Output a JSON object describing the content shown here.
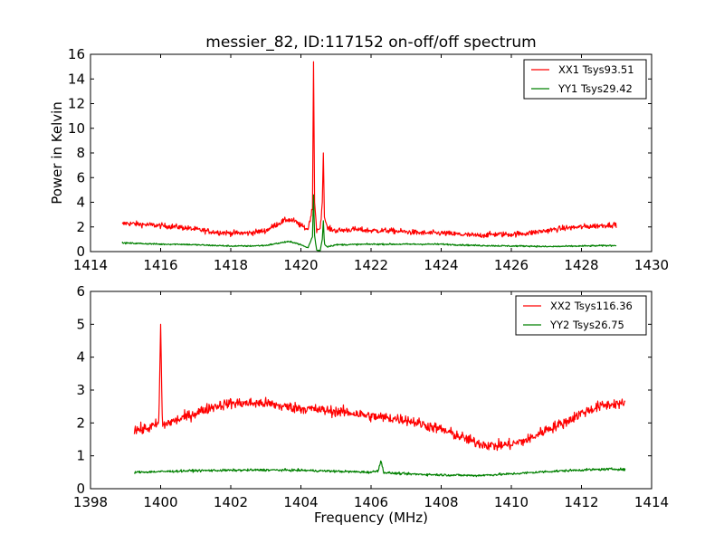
{
  "figure": {
    "background": "#ffffff"
  },
  "chart_data": [
    {
      "type": "line",
      "title": "messier_82, ID:117152 on-off/off spectrum",
      "xlabel": "",
      "ylabel": "Power in Kelvin",
      "xlim": [
        1414,
        1430
      ],
      "ylim": [
        0,
        16
      ],
      "xticks": [
        1414,
        1416,
        1418,
        1420,
        1422,
        1424,
        1426,
        1428,
        1430
      ],
      "yticks": [
        0,
        2,
        4,
        6,
        8,
        10,
        12,
        14,
        16
      ],
      "legend_position": "top-right",
      "grid": false,
      "series": [
        {
          "name": "XX1 Tsys93.51",
          "color": "#ff0000",
          "x": [
            1414.9,
            1415.0,
            1415.5,
            1416.0,
            1416.5,
            1417.0,
            1417.5,
            1418.0,
            1418.5,
            1419.0,
            1419.3,
            1419.6,
            1419.8,
            1420.0,
            1420.2,
            1420.33,
            1420.36,
            1420.39,
            1420.45,
            1420.55,
            1420.61,
            1420.64,
            1420.67,
            1420.75,
            1421.0,
            1421.5,
            1422.0,
            1422.5,
            1423.0,
            1423.5,
            1424.0,
            1424.5,
            1425.0,
            1425.5,
            1426.0,
            1426.5,
            1427.0,
            1427.5,
            1428.0,
            1428.5,
            1429.0
          ],
          "y": [
            2.2,
            2.3,
            2.2,
            2.1,
            2.0,
            1.8,
            1.6,
            1.5,
            1.5,
            1.7,
            2.2,
            2.6,
            2.5,
            2.1,
            1.8,
            3.5,
            15.4,
            4.0,
            1.8,
            1.9,
            4.0,
            8.0,
            2.8,
            1.9,
            1.7,
            1.8,
            1.7,
            1.7,
            1.6,
            1.5,
            1.5,
            1.4,
            1.3,
            1.4,
            1.4,
            1.5,
            1.7,
            1.9,
            2.0,
            2.1,
            2.2
          ],
          "noise": 0.22
        },
        {
          "name": "YY1 Tsys29.42",
          "color": "#008000",
          "x": [
            1414.9,
            1415.5,
            1416.0,
            1416.5,
            1417.0,
            1417.5,
            1418.0,
            1418.5,
            1419.0,
            1419.3,
            1419.6,
            1419.8,
            1420.0,
            1420.2,
            1420.33,
            1420.36,
            1420.39,
            1420.45,
            1420.55,
            1420.61,
            1420.64,
            1420.67,
            1420.75,
            1421.0,
            1422.0,
            1423.0,
            1424.0,
            1424.5,
            1425.0,
            1426.0,
            1426.5,
            1427.0,
            1428.0,
            1429.0
          ],
          "y": [
            0.7,
            0.65,
            0.6,
            0.6,
            0.55,
            0.5,
            0.45,
            0.45,
            0.5,
            0.65,
            0.8,
            0.75,
            0.55,
            0.3,
            1.2,
            4.6,
            1.3,
            0.1,
            0.1,
            1.0,
            2.5,
            0.6,
            0.4,
            0.55,
            0.6,
            0.6,
            0.6,
            0.55,
            0.5,
            0.45,
            0.45,
            0.4,
            0.45,
            0.5
          ],
          "noise": 0.06
        }
      ]
    },
    {
      "type": "line",
      "title": "",
      "xlabel": "Frequency (MHz)",
      "ylabel": "",
      "xlim": [
        1398,
        1414
      ],
      "ylim": [
        0,
        6
      ],
      "xticks": [
        1398,
        1400,
        1402,
        1404,
        1406,
        1408,
        1410,
        1412,
        1414
      ],
      "yticks": [
        0,
        1,
        2,
        3,
        4,
        5,
        6
      ],
      "legend_position": "top-right",
      "grid": false,
      "series": [
        {
          "name": "XX2 Tsys116.36",
          "color": "#ff0000",
          "x": [
            1399.25,
            1399.5,
            1399.8,
            1399.95,
            1400.0,
            1400.05,
            1400.2,
            1400.5,
            1401.0,
            1401.5,
            1402.0,
            1402.5,
            1403.0,
            1403.5,
            1404.0,
            1404.5,
            1405.0,
            1405.5,
            1406.0,
            1406.5,
            1407.0,
            1407.5,
            1408.0,
            1408.5,
            1409.0,
            1409.5,
            1410.0,
            1410.5,
            1411.0,
            1411.5,
            1412.0,
            1412.5,
            1413.0,
            1413.25
          ],
          "y": [
            1.8,
            1.8,
            1.9,
            2.0,
            5.0,
            1.9,
            2.0,
            2.1,
            2.3,
            2.5,
            2.6,
            2.6,
            2.6,
            2.5,
            2.45,
            2.4,
            2.35,
            2.3,
            2.2,
            2.15,
            2.1,
            1.95,
            1.8,
            1.6,
            1.4,
            1.3,
            1.35,
            1.5,
            1.8,
            2.0,
            2.3,
            2.5,
            2.6,
            2.55
          ],
          "noise": 0.16
        },
        {
          "name": "YY2 Tsys26.75",
          "color": "#008000",
          "x": [
            1399.25,
            1400.0,
            1401.0,
            1402.0,
            1403.0,
            1404.0,
            1405.0,
            1406.0,
            1406.2,
            1406.28,
            1406.36,
            1406.5,
            1407.0,
            1408.0,
            1409.0,
            1410.0,
            1411.0,
            1412.0,
            1413.0,
            1413.25
          ],
          "y": [
            0.5,
            0.52,
            0.55,
            0.56,
            0.57,
            0.56,
            0.53,
            0.5,
            0.55,
            0.85,
            0.5,
            0.48,
            0.45,
            0.42,
            0.4,
            0.45,
            0.52,
            0.57,
            0.6,
            0.58
          ],
          "noise": 0.035
        }
      ]
    }
  ]
}
